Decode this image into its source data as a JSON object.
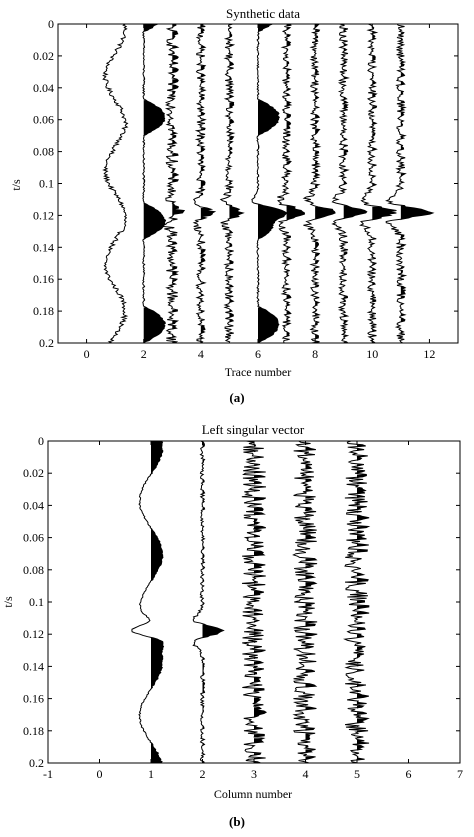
{
  "chart_data": [
    {
      "type": "wiggle",
      "panel_label": "(a)",
      "title": "Synthetic data",
      "xlabel": "Trace number",
      "ylabel": "t/s",
      "xlim": [
        -1,
        13
      ],
      "ylim": [
        0.2,
        0
      ],
      "x_ticks": [
        "0",
        "2",
        "4",
        "6",
        "8",
        "10",
        "12"
      ],
      "x_tick_values": [
        0,
        2,
        4,
        6,
        8,
        10,
        12
      ],
      "y_ticks": [
        "0",
        "0.02",
        "0.04",
        "0.06",
        "0.08",
        "0.1",
        "0.12",
        "0.14",
        "0.16",
        "0.18",
        "0.2"
      ],
      "y_tick_values": [
        0,
        0.02,
        0.04,
        0.06,
        0.08,
        0.1,
        0.12,
        0.14,
        0.16,
        0.18,
        0.2
      ],
      "traces": [
        {
          "x": 1,
          "kind": "smooth",
          "freq": 17,
          "amp": 0.5,
          "noise": 0.12,
          "event": 0,
          "fill_positive": false,
          "phase": 0.0
        },
        {
          "x": 2,
          "kind": "blocky",
          "freq": 30,
          "amp": 1.0,
          "noise": 0.05,
          "event": 0,
          "fill_positive": true,
          "phase": 0.15
        },
        {
          "x": 3,
          "kind": "noise",
          "freq": 0,
          "amp": 0,
          "noise": 0.3,
          "event": 0.4,
          "fill_positive": true,
          "phase": 0
        },
        {
          "x": 4,
          "kind": "noise",
          "freq": 0,
          "amp": 0,
          "noise": 0.22,
          "event": 0.5,
          "fill_positive": true,
          "phase": 0
        },
        {
          "x": 5,
          "kind": "noise",
          "freq": 0,
          "amp": 0,
          "noise": 0.22,
          "event": 0.6,
          "fill_positive": true,
          "phase": 0
        },
        {
          "x": 6,
          "kind": "blocky",
          "freq": 30,
          "amp": 1.0,
          "noise": 0.05,
          "event": 0.6,
          "fill_positive": true,
          "phase": 0.15
        },
        {
          "x": 7,
          "kind": "noise",
          "freq": 0,
          "amp": 0,
          "noise": 0.22,
          "event": 0.8,
          "fill_positive": true,
          "phase": 0
        },
        {
          "x": 8,
          "kind": "noise",
          "freq": 0,
          "amp": 0,
          "noise": 0.22,
          "event": 0.9,
          "fill_positive": true,
          "phase": 0
        },
        {
          "x": 9,
          "kind": "noise",
          "freq": 0,
          "amp": 0,
          "noise": 0.22,
          "event": 1.0,
          "fill_positive": true,
          "phase": 0
        },
        {
          "x": 10,
          "kind": "noise",
          "freq": 0,
          "amp": 0,
          "noise": 0.22,
          "event": 1.1,
          "fill_positive": true,
          "phase": 0
        },
        {
          "x": 11,
          "kind": "noise",
          "freq": 0,
          "amp": 0,
          "noise": 0.22,
          "event": 1.5,
          "fill_positive": true,
          "phase": 0
        }
      ],
      "event_time": 0.118
    },
    {
      "type": "wiggle",
      "panel_label": "(b)",
      "title": "Left singular vector",
      "xlabel": "Column number",
      "ylabel": "t/s",
      "xlim": [
        -1,
        7
      ],
      "ylim": [
        0.2,
        0
      ],
      "x_ticks": [
        "-1",
        "0",
        "1",
        "2",
        "3",
        "4",
        "5",
        "6",
        "7"
      ],
      "x_tick_values": [
        -1,
        0,
        1,
        2,
        3,
        4,
        5,
        6,
        7
      ],
      "y_ticks": [
        "0",
        "0.02",
        "0.04",
        "0.06",
        "0.08",
        "0.1",
        "0.12",
        "0.14",
        "0.16",
        "0.18",
        "0.2"
      ],
      "y_tick_values": [
        0,
        0.02,
        0.04,
        0.06,
        0.08,
        0.1,
        0.12,
        0.14,
        0.16,
        0.18,
        0.2
      ],
      "traces": [
        {
          "x": 1,
          "kind": "smooth",
          "freq": 15,
          "amp": 0.42,
          "noise": 0.03,
          "event": -0.6,
          "fill_positive": true,
          "phase": 0.0
        },
        {
          "x": 2,
          "kind": "noise",
          "freq": 0,
          "amp": 0,
          "noise": 0.08,
          "event": 0.75,
          "fill_positive": true,
          "phase": 0
        },
        {
          "x": 3,
          "kind": "noise",
          "freq": 0,
          "amp": 0,
          "noise": 0.45,
          "event": 0,
          "fill_positive": true,
          "phase": 0
        },
        {
          "x": 4,
          "kind": "noise",
          "freq": 0,
          "amp": 0,
          "noise": 0.45,
          "event": 0,
          "fill_positive": true,
          "phase": 0
        },
        {
          "x": 5,
          "kind": "noise",
          "freq": 0,
          "amp": 0,
          "noise": 0.45,
          "event": 0,
          "fill_positive": true,
          "phase": 0
        }
      ],
      "event_time": 0.118
    }
  ]
}
